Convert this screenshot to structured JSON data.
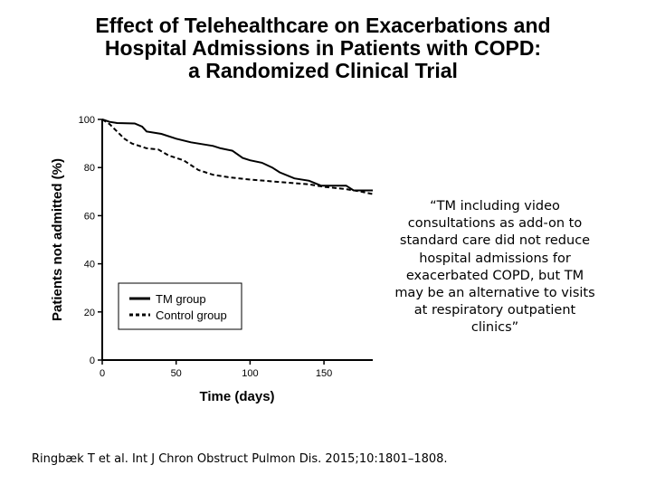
{
  "slide": {
    "title_lines": [
      "Effect of Telehealthcare on Exacerbations and",
      "Hospital Admissions in Patients with COPD:",
      "a Randomized Clinical Trial"
    ],
    "quote_lines": [
      "“TM including video",
      "consultations as add-on to",
      "standard care did not reduce",
      "hospital admissions for",
      "exacerbated COPD, but TM",
      "may be an alternative to visits",
      "at respiratory outpatient",
      "clinics”"
    ],
    "citation": "Ringbæk T et al. Int J Chron Obstruct Pulmon Dis. 2015;10:1801–1808."
  },
  "chart_data": {
    "type": "line",
    "subtype": "kaplan-meier step",
    "xlabel": "Time (days)",
    "ylabel": "Patients not admitted (%)",
    "xlim": [
      0,
      183
    ],
    "ylim": [
      0,
      100
    ],
    "xticks": [
      0,
      50,
      100,
      150
    ],
    "yticks": [
      0,
      20,
      40,
      60,
      80,
      100
    ],
    "grid": false,
    "legend_position": "bottom-left",
    "series": [
      {
        "name": "TM group",
        "style": "solid",
        "color": "#000000",
        "x": [
          0,
          5,
          10,
          22,
          27,
          30,
          40,
          50,
          60,
          75,
          80,
          88,
          95,
          100,
          108,
          115,
          120,
          130,
          140,
          148,
          165,
          170,
          183
        ],
        "y": [
          100,
          99,
          98.5,
          98.3,
          97,
          95,
          94,
          92,
          90.5,
          89,
          88,
          87,
          84,
          83,
          82,
          80,
          78,
          75.5,
          74.5,
          72.5,
          72.5,
          70.5,
          70.5
        ]
      },
      {
        "name": "Control group",
        "style": "dashed",
        "color": "#000000",
        "x": [
          0,
          5,
          10,
          15,
          20,
          30,
          38,
          45,
          55,
          60,
          65,
          75,
          85,
          100,
          110,
          120,
          140,
          150,
          165,
          175,
          183
        ],
        "y": [
          100,
          98,
          95,
          92,
          90,
          88,
          87.5,
          85,
          83,
          81,
          79,
          77,
          76,
          75,
          74.5,
          74,
          73,
          72,
          71,
          70,
          69
        ]
      }
    ]
  }
}
